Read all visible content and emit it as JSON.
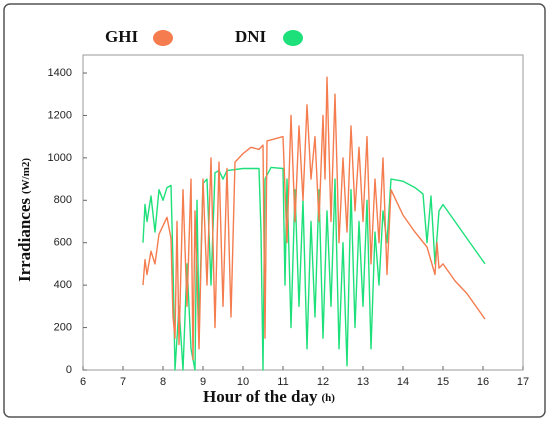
{
  "chart_data": {
    "type": "line",
    "xlabel": "Hour of the day",
    "xlabel_unit": "(h)",
    "ylabel": "Irradiances",
    "ylabel_unit": "(W/m2)",
    "xlim": [
      6,
      17
    ],
    "xticks": [
      6,
      7,
      8,
      9,
      10,
      11,
      12,
      13,
      14,
      15,
      16,
      17
    ],
    "ylim": [
      0,
      1400
    ],
    "yticks": [
      0,
      200,
      400,
      600,
      800,
      1000,
      1200,
      1400
    ],
    "grid": false,
    "legend": "top",
    "series": [
      {
        "name": "GHI",
        "color": "#f47c4e",
        "x": [
          7.5,
          7.55,
          7.6,
          7.7,
          7.8,
          7.9,
          8.0,
          8.1,
          8.2,
          8.25,
          8.3,
          8.35,
          8.4,
          8.5,
          8.6,
          8.7,
          8.75,
          8.8,
          8.9,
          9.0,
          9.1,
          9.2,
          9.3,
          9.4,
          9.5,
          9.6,
          9.7,
          9.8,
          10.0,
          10.2,
          10.4,
          10.5,
          10.55,
          10.6,
          10.8,
          11.0,
          11.1,
          11.2,
          11.3,
          11.4,
          11.5,
          11.6,
          11.7,
          11.8,
          11.9,
          12.0,
          12.05,
          12.1,
          12.2,
          12.3,
          12.4,
          12.5,
          12.6,
          12.7,
          12.8,
          12.9,
          13.0,
          13.1,
          13.2,
          13.3,
          13.4,
          13.5,
          13.6,
          13.7,
          14.0,
          14.3,
          14.6,
          14.8,
          14.85,
          14.9,
          15.0,
          15.3,
          15.6,
          15.9,
          16.05
        ],
        "values": [
          400,
          520,
          450,
          560,
          500,
          640,
          680,
          720,
          620,
          250,
          150,
          700,
          120,
          850,
          300,
          900,
          50,
          750,
          100,
          900,
          400,
          1000,
          200,
          980,
          300,
          950,
          250,
          980,
          1020,
          1050,
          1040,
          1060,
          150,
          1080,
          1090,
          1100,
          600,
          1200,
          700,
          1150,
          800,
          1250,
          900,
          1100,
          700,
          1200,
          900,
          1380,
          700,
          1300,
          600,
          1000,
          650,
          1150,
          750,
          1050,
          700,
          1100,
          500,
          900,
          600,
          1000,
          450,
          850,
          730,
          650,
          580,
          450,
          600,
          480,
          500,
          420,
          360,
          280,
          240
        ]
      },
      {
        "name": "DNI",
        "color": "#1ee07a",
        "x": [
          7.5,
          7.55,
          7.6,
          7.7,
          7.8,
          7.9,
          8.0,
          8.1,
          8.2,
          8.25,
          8.3,
          8.4,
          8.5,
          8.6,
          8.7,
          8.8,
          8.85,
          8.9,
          9.0,
          9.1,
          9.2,
          9.3,
          9.4,
          9.5,
          9.6,
          10.0,
          10.4,
          10.45,
          10.5,
          10.55,
          10.7,
          11.0,
          11.05,
          11.1,
          11.2,
          11.3,
          11.4,
          11.5,
          11.6,
          11.7,
          11.8,
          11.9,
          12.0,
          12.1,
          12.2,
          12.3,
          12.4,
          12.5,
          12.6,
          12.7,
          12.8,
          12.9,
          13.0,
          13.1,
          13.2,
          13.3,
          13.4,
          13.5,
          13.6,
          13.7,
          14.0,
          14.3,
          14.5,
          14.6,
          14.7,
          14.8,
          14.9,
          15.0,
          15.3,
          15.6,
          15.9,
          16.05
        ],
        "values": [
          600,
          780,
          700,
          820,
          650,
          850,
          800,
          860,
          870,
          500,
          0,
          300,
          0,
          500,
          100,
          0,
          800,
          200,
          880,
          900,
          400,
          930,
          940,
          900,
          940,
          950,
          950,
          650,
          0,
          900,
          955,
          950,
          400,
          900,
          200,
          850,
          300,
          800,
          100,
          700,
          250,
          850,
          150,
          750,
          300,
          900,
          100,
          600,
          20,
          850,
          200,
          700,
          300,
          800,
          100,
          650,
          400,
          750,
          600,
          900,
          890,
          860,
          830,
          600,
          820,
          500,
          750,
          780,
          700,
          620,
          540,
          500
        ]
      }
    ]
  }
}
